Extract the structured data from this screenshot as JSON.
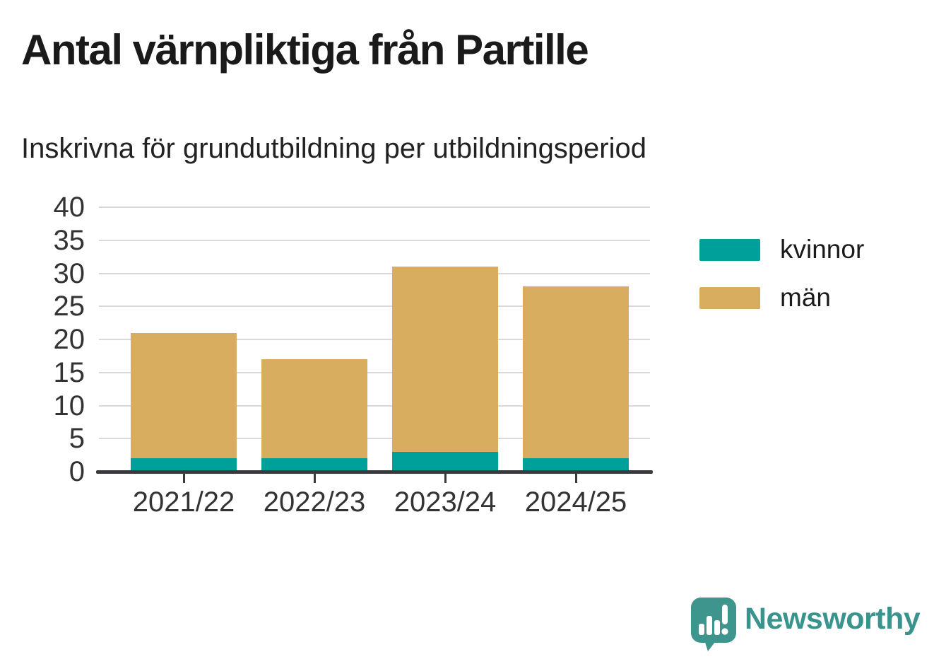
{
  "title": "Antal värnpliktiga från Partille",
  "subtitle": "Inskrivna för grundutbildning per utbildningsperiod",
  "chart_data": {
    "type": "bar",
    "stacked": true,
    "title": "Antal värnpliktiga från Partille",
    "subtitle": "Inskrivna för grundutbildning per utbildningsperiod",
    "categories": [
      "2021/22",
      "2022/23",
      "2023/24",
      "2024/25"
    ],
    "series": [
      {
        "name": "kvinnor",
        "color": "#00a09a",
        "values": [
          2,
          2,
          3,
          2
        ]
      },
      {
        "name": "män",
        "color": "#d9ad5f",
        "values": [
          19,
          15,
          28,
          26
        ]
      }
    ],
    "stack_totals": [
      21,
      17,
      31,
      28
    ],
    "xlabel": "",
    "ylabel": "",
    "ylim": [
      0,
      40
    ],
    "ytick_step": 5,
    "yticks": [
      0,
      5,
      10,
      15,
      20,
      25,
      30,
      35,
      40
    ],
    "grid": true,
    "legend_position": "right"
  },
  "branding": {
    "logo_text": "Newsworthy",
    "logo_icon": "speech-bubble-bar-chart-icon",
    "logo_color": "#3d958e"
  },
  "colors": {
    "background": "#ffffff",
    "title_text": "#1a1a1a",
    "subtitle_text": "#222222",
    "axis_line": "#3a3a3e",
    "tick_label": "#333333",
    "gridline": "#d9d9d9",
    "kvinnor": "#00a09a",
    "man": "#d9ad5f",
    "logo": "#3d958e"
  }
}
